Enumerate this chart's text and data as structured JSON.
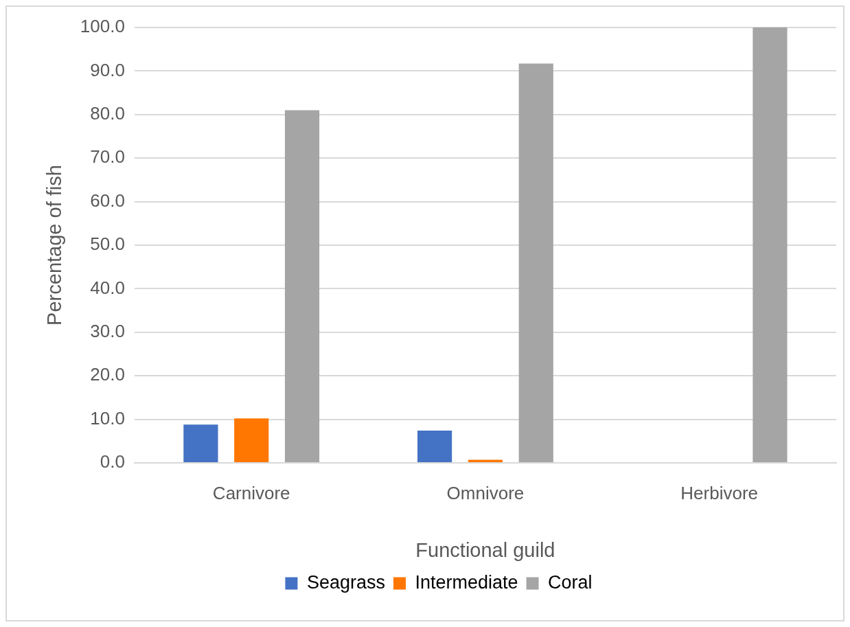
{
  "chart_data": {
    "type": "bar",
    "categories": [
      "Carnivore",
      "Omnivore",
      "Herbivore"
    ],
    "series": [
      {
        "name": "Seagrass",
        "color": "#4472c4",
        "values": [
          8.8,
          7.4,
          0
        ]
      },
      {
        "name": "Intermediate",
        "color": "#ff7700",
        "values": [
          10.2,
          0.7,
          0
        ]
      },
      {
        "name": "Coral",
        "color": "#a5a5a5",
        "values": [
          81.0,
          91.7,
          100.0
        ]
      }
    ],
    "xlabel": "Functional guild",
    "ylabel": "Percentage of fish",
    "ylim": [
      0,
      100
    ],
    "yticks": [
      {
        "value": 0,
        "label": "0.0"
      },
      {
        "value": 10,
        "label": "10.0"
      },
      {
        "value": 20,
        "label": "20.0"
      },
      {
        "value": 30,
        "label": "30.0"
      },
      {
        "value": 40,
        "label": "40.0"
      },
      {
        "value": 50,
        "label": "50.0"
      },
      {
        "value": 60,
        "label": "60.0"
      },
      {
        "value": 70,
        "label": "70.0"
      },
      {
        "value": 80,
        "label": "80.0"
      },
      {
        "value": 90,
        "label": "90.0"
      },
      {
        "value": 100,
        "label": "100.0"
      }
    ],
    "grid": "y",
    "legend": "bottom"
  }
}
